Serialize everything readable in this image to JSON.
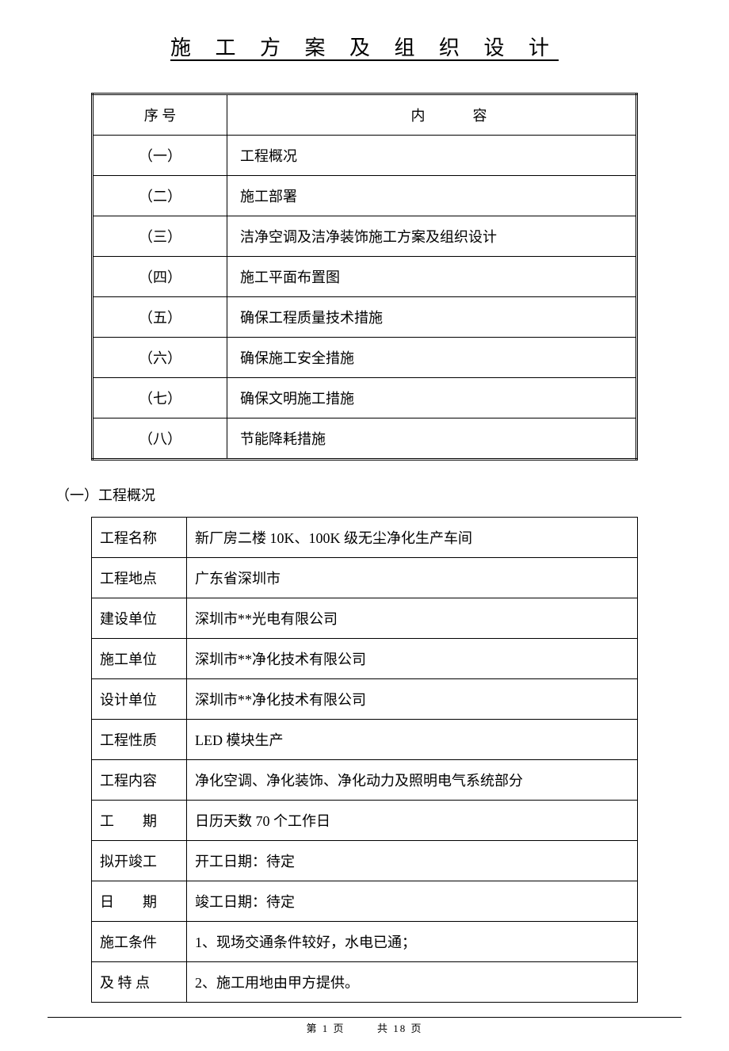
{
  "title": "施 工 方 案 及 组 织 设 计",
  "table1": {
    "header_num": "序 号",
    "header_content": "内容",
    "rows": [
      {
        "num": "（一）",
        "content": "工程概况"
      },
      {
        "num": "（二）",
        "content": "施工部署"
      },
      {
        "num": "（三）",
        "content": "洁净空调及洁净装饰施工方案及组织设计"
      },
      {
        "num": "（四）",
        "content": "施工平面布置图"
      },
      {
        "num": "（五）",
        "content": "确保工程质量技术措施"
      },
      {
        "num": "（六）",
        "content": "确保施工安全措施"
      },
      {
        "num": "（七）",
        "content": "确保文明施工措施"
      },
      {
        "num": "（八）",
        "content": "节能降耗措施"
      }
    ]
  },
  "section1_heading": "（一）工程概况",
  "table2": {
    "rows": [
      {
        "label": "工程名称",
        "value": "新厂房二楼 10K、100K 级无尘净化生产车间"
      },
      {
        "label": "工程地点",
        "value": "广东省深圳市"
      },
      {
        "label": "建设单位",
        "value": "深圳市**光电有限公司"
      },
      {
        "label": "施工单位",
        "value": "深圳市**净化技术有限公司"
      },
      {
        "label": "设计单位",
        "value": "深圳市**净化技术有限公司"
      },
      {
        "label": "工程性质",
        "value": "LED 模块生产"
      },
      {
        "label": "工程内容",
        "value": "净化空调、净化装饰、净化动力及照明电气系统部分"
      },
      {
        "label": "工　　期",
        "value": "日历天数 70 个工作日"
      },
      {
        "label": "拟开竣工",
        "value": "开工日期：待定"
      },
      {
        "label": "日　　期",
        "value": "竣工日期：待定"
      },
      {
        "label": "施工条件",
        "value": "1、现场交通条件较好，水电已通；"
      },
      {
        "label": "及 特 点",
        "value": "2、施工用地由甲方提供。"
      }
    ]
  },
  "footer": {
    "page_current": "1",
    "page_total": "18",
    "prefix": "第",
    "mid": "页",
    "sep": "共",
    "suffix": "页"
  }
}
